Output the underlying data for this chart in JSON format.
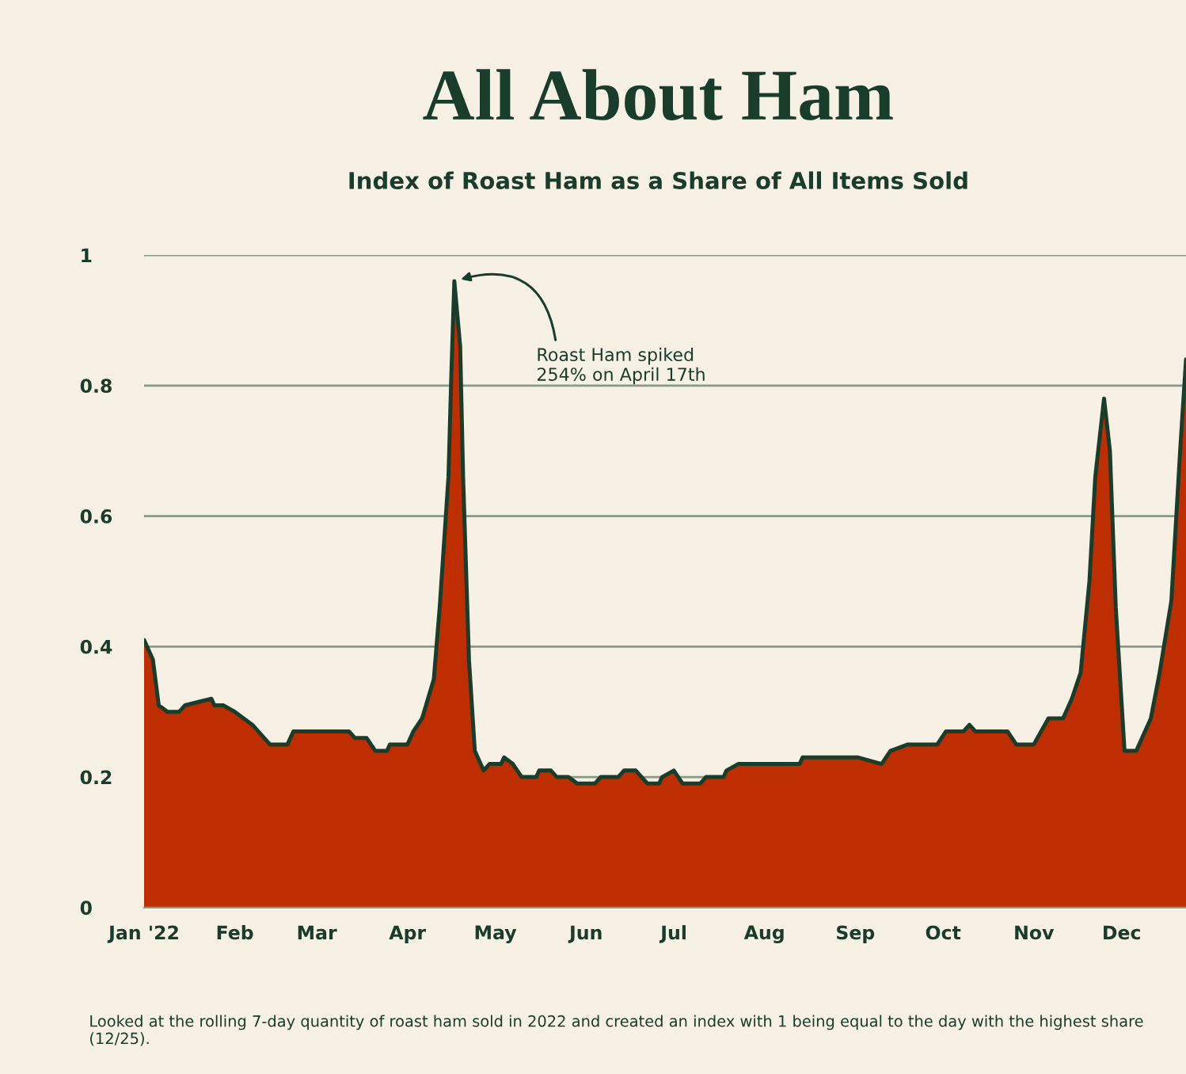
{
  "chart_data": {
    "type": "area",
    "title": "All About Ham",
    "subtitle": "Index of Roast Ham as a Share of All Items Sold",
    "x": [
      "2022-01-01",
      "2022-01-04",
      "2022-01-06",
      "2022-01-09",
      "2022-01-13",
      "2022-01-15",
      "2022-01-24",
      "2022-01-25",
      "2022-01-28",
      "2022-02-01",
      "2022-02-04",
      "2022-02-07",
      "2022-02-13",
      "2022-02-19",
      "2022-02-21",
      "2022-03-12",
      "2022-03-14",
      "2022-03-18",
      "2022-03-21",
      "2022-03-25",
      "2022-03-26",
      "2022-04-01",
      "2022-04-03",
      "2022-04-06",
      "2022-04-10",
      "2022-04-12",
      "2022-04-15",
      "2022-04-16",
      "2022-04-17",
      "2022-04-19",
      "2022-04-20",
      "2022-04-22",
      "2022-04-24",
      "2022-04-27",
      "2022-04-29",
      "2022-05-03",
      "2022-05-04",
      "2022-05-07",
      "2022-05-10",
      "2022-05-15",
      "2022-05-16",
      "2022-05-20",
      "2022-05-22",
      "2022-05-26",
      "2022-05-29",
      "2022-06-04",
      "2022-06-06",
      "2022-06-12",
      "2022-06-14",
      "2022-06-18",
      "2022-06-22",
      "2022-06-26",
      "2022-06-27",
      "2022-07-01",
      "2022-07-04",
      "2022-07-10",
      "2022-07-12",
      "2022-07-18",
      "2022-07-19",
      "2022-07-23",
      "2022-08-13",
      "2022-08-14",
      "2022-09-02",
      "2022-09-10",
      "2022-09-13",
      "2022-09-19",
      "2022-09-29",
      "2022-10-02",
      "2022-10-08",
      "2022-10-10",
      "2022-10-12",
      "2022-10-23",
      "2022-10-26",
      "2022-11-01",
      "2022-11-06",
      "2022-11-11",
      "2022-11-14",
      "2022-11-17",
      "2022-11-20",
      "2022-11-22",
      "2022-11-25",
      "2022-11-27",
      "2022-11-29",
      "2022-12-02",
      "2022-12-06",
      "2022-12-11",
      "2022-12-14",
      "2022-12-18",
      "2022-12-21",
      "2022-12-23"
    ],
    "series": [
      {
        "color": "#bf2e00",
        "values": [
          0.41,
          0.38,
          0.31,
          0.3,
          0.3,
          0.31,
          0.32,
          0.31,
          0.31,
          0.3,
          0.29,
          0.28,
          0.25,
          0.25,
          0.27,
          0.27,
          0.26,
          0.26,
          0.24,
          0.24,
          0.25,
          0.25,
          0.27,
          0.29,
          0.35,
          0.46,
          0.66,
          0.82,
          0.96,
          0.86,
          0.66,
          0.38,
          0.24,
          0.21,
          0.22,
          0.22,
          0.23,
          0.22,
          0.2,
          0.2,
          0.21,
          0.21,
          0.2,
          0.2,
          0.19,
          0.19,
          0.2,
          0.2,
          0.21,
          0.21,
          0.19,
          0.19,
          0.2,
          0.21,
          0.19,
          0.19,
          0.2,
          0.2,
          0.21,
          0.22,
          0.22,
          0.23,
          0.23,
          0.22,
          0.24,
          0.25,
          0.25,
          0.27,
          0.27,
          0.28,
          0.27,
          0.27,
          0.25,
          0.25,
          0.29,
          0.29,
          0.32,
          0.36,
          0.5,
          0.66,
          0.78,
          0.7,
          0.46,
          0.24,
          0.24,
          0.29,
          0.36,
          0.47,
          0.7,
          0.84
        ]
      }
    ],
    "xlim": [
      "2022-01-01",
      "2022-12-23"
    ],
    "xticks": [
      {
        "value": "2022-01-01",
        "label": "Jan '22"
      },
      {
        "value": "2022-02-01",
        "label": "Feb"
      },
      {
        "value": "2022-03-01",
        "label": "Mar"
      },
      {
        "value": "2022-04-01",
        "label": "Apr"
      },
      {
        "value": "2022-05-01",
        "label": "May"
      },
      {
        "value": "2022-06-01",
        "label": "Jun"
      },
      {
        "value": "2022-07-01",
        "label": "Jul"
      },
      {
        "value": "2022-08-01",
        "label": "Aug"
      },
      {
        "value": "2022-09-01",
        "label": "Sep"
      },
      {
        "value": "2022-10-01",
        "label": "Oct"
      },
      {
        "value": "2022-11-01",
        "label": "Nov"
      },
      {
        "value": "2022-12-01",
        "label": "Dec"
      }
    ],
    "ylim": [
      0,
      1
    ],
    "yticks": [
      0,
      0.2,
      0.4,
      0.6,
      0.8,
      1
    ],
    "grid": "y",
    "annotations": [
      {
        "text": "Roast Ham spiked\n254% on April 17th",
        "x": "2022-04-17",
        "y": 0.96
      },
      "Looked at the rolling 7-day quantity of roast ham sold in 2022 and created an index with 1 being equal to the day with the highest share (12/25)."
    ]
  }
}
